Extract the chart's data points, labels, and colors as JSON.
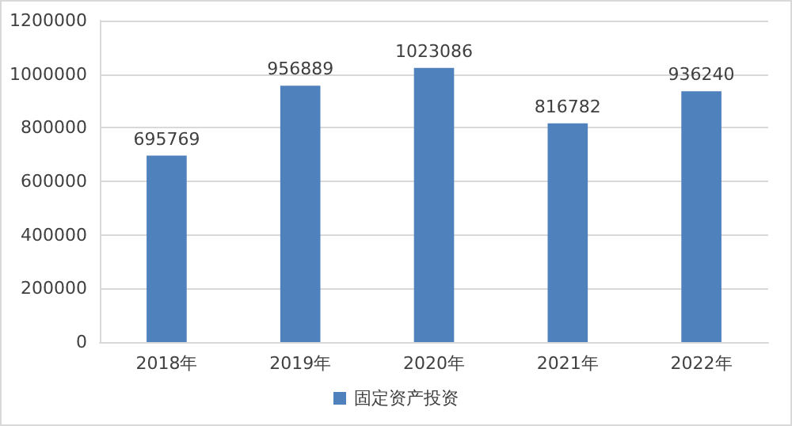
{
  "chart_data": {
    "type": "bar",
    "categories": [
      "2018年",
      "2019年",
      "2020年",
      "2021年",
      "2022年"
    ],
    "series": [
      {
        "name": "固定资产投资",
        "color": "#4f81bd",
        "values": [
          695769,
          956889,
          1023086,
          816782,
          936240
        ]
      }
    ],
    "ylim": [
      0,
      1200000
    ],
    "yticks": [
      0,
      200000,
      400000,
      600000,
      800000,
      1000000,
      1200000
    ],
    "grid": "y",
    "legend": "bottom",
    "data_labels": true
  }
}
